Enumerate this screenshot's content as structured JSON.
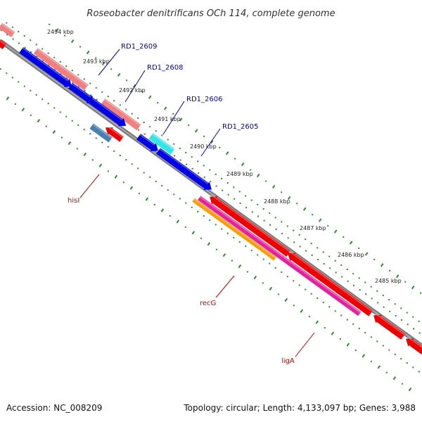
{
  "title": "Roseobacter denitrificans OCh 114, complete genome",
  "footer": {
    "accession": "Accession: NC_008209",
    "topology": "Topology: circular; Length: 4,133,097 bp; Genes: 3,988"
  },
  "scale_labels": [
    "2494 kbp",
    "2493 kbp",
    "2492 kbp",
    "2491 kbp",
    "2490 kbp",
    "2489 kbp",
    "2488 kbp",
    "2487 kbp",
    "2486 kbp",
    "2485 kbp"
  ],
  "gene_labels": {
    "rd1_2609": "RD1_2609",
    "rd1_2608": "RD1_2608",
    "rd1_2606": "RD1_2606",
    "rd1_2605": "RD1_2605",
    "hisI": "hisI",
    "recG": "recG",
    "ligA": "ligA"
  },
  "colors": {
    "backbone": "#808080",
    "tick_dots": "#2e8b2e",
    "forward_cds": "#0000e6",
    "forward_rna": "#f08080",
    "reverse_cds": "#ee0000",
    "cyan_feature": "#33e6e6",
    "steelblue_feature": "#4a7fb0",
    "magenta_feature": "#e6209c",
    "orange_feature": "#ff9900",
    "blue_label": "#0000cc",
    "red_label": "#cc0000"
  }
}
